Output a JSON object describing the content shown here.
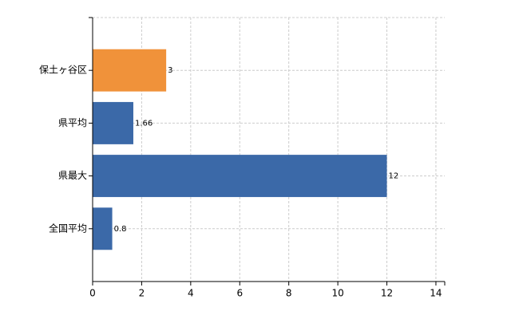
{
  "chart_data": {
    "type": "bar",
    "orientation": "horizontal",
    "categories": [
      "保土ヶ谷区",
      "県平均",
      "県最大",
      "全国平均"
    ],
    "values": [
      3,
      1.66,
      12,
      0.8
    ],
    "colors": [
      "#f0923a",
      "#3b69a8",
      "#3b69a8",
      "#3b69a8"
    ],
    "xlim": [
      0,
      14.36
    ],
    "xticks": [
      0,
      2,
      4,
      6,
      8,
      10,
      12,
      14
    ],
    "grid": true
  }
}
